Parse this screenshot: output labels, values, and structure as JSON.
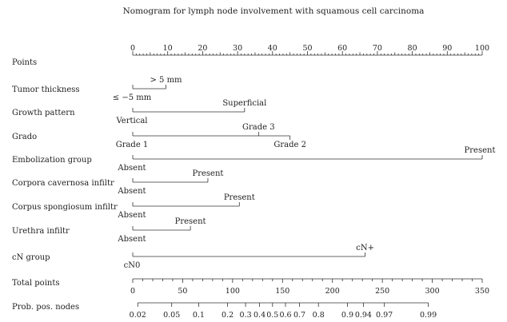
{
  "chart_data": {
    "type": "nomogram",
    "title": "Nomogram for lymph node involvement with squamous cell carcinoma",
    "points_scale": {
      "label": "Points",
      "min": 0,
      "max": 100,
      "ticks": [
        0,
        10,
        20,
        30,
        40,
        50,
        60,
        70,
        80,
        90,
        100
      ]
    },
    "variables": [
      {
        "name": "Tumor thickness",
        "levels": [
          {
            "label": "≤ −5 mm",
            "points": 0,
            "pos": "below"
          },
          {
            "label": "> 5 mm",
            "points": 9.5,
            "pos": "above"
          }
        ]
      },
      {
        "name": "Growth pattern",
        "levels": [
          {
            "label": "Vertical",
            "points": 0,
            "pos": "below"
          },
          {
            "label": "Superficial",
            "points": 32,
            "pos": "above"
          }
        ]
      },
      {
        "name": "Grado",
        "levels": [
          {
            "label": "Grade 1",
            "points": 0,
            "pos": "below"
          },
          {
            "label": "Grade 3",
            "points": 36,
            "pos": "above"
          },
          {
            "label": "Grade 2",
            "points": 45,
            "pos": "below"
          }
        ]
      },
      {
        "name": "Embolization group",
        "levels": [
          {
            "label": "Absent",
            "points": 0,
            "pos": "below"
          },
          {
            "label": "Present",
            "points": 100,
            "pos": "above"
          }
        ]
      },
      {
        "name": "Corpora cavernosa infiltr",
        "levels": [
          {
            "label": "Absent",
            "points": 0,
            "pos": "below"
          },
          {
            "label": "Present",
            "points": 21.5,
            "pos": "above"
          }
        ]
      },
      {
        "name": "Corpus spongiosum infiltr",
        "levels": [
          {
            "label": "Absent",
            "points": 0,
            "pos": "below"
          },
          {
            "label": "Present",
            "points": 30.5,
            "pos": "above"
          }
        ]
      },
      {
        "name": "Urethra infiltr",
        "levels": [
          {
            "label": "Absent",
            "points": 0,
            "pos": "below"
          },
          {
            "label": "Present",
            "points": 16.5,
            "pos": "above"
          }
        ]
      },
      {
        "name": "cN group",
        "levels": [
          {
            "label": "cN0",
            "points": 0,
            "pos": "below"
          },
          {
            "label": "cN+",
            "points": 66.5,
            "pos": "above"
          }
        ]
      }
    ],
    "total_points_scale": {
      "label": "Total points",
      "min": 0,
      "max": 350,
      "ticks": [
        0,
        50,
        100,
        150,
        200,
        250,
        300,
        350
      ]
    },
    "probability_scale": {
      "label": "Prob. pos. nodes",
      "ticks": [
        {
          "label": "0.02",
          "total_points": 5
        },
        {
          "label": "0.05",
          "total_points": 39
        },
        {
          "label": "0.1",
          "total_points": 66
        },
        {
          "label": "0.2",
          "total_points": 95
        },
        {
          "label": "0.3",
          "total_points": 113
        },
        {
          "label": "0.4",
          "total_points": 127
        },
        {
          "label": "0.5",
          "total_points": 140
        },
        {
          "label": "0.6",
          "total_points": 153
        },
        {
          "label": "0.7",
          "total_points": 167
        },
        {
          "label": "0.8",
          "total_points": 186
        },
        {
          "label": "0.9",
          "total_points": 215
        },
        {
          "label": "0.94",
          "total_points": 231
        },
        {
          "label": "0.97",
          "total_points": 252
        },
        {
          "label": "0.99",
          "total_points": 296
        }
      ]
    }
  }
}
